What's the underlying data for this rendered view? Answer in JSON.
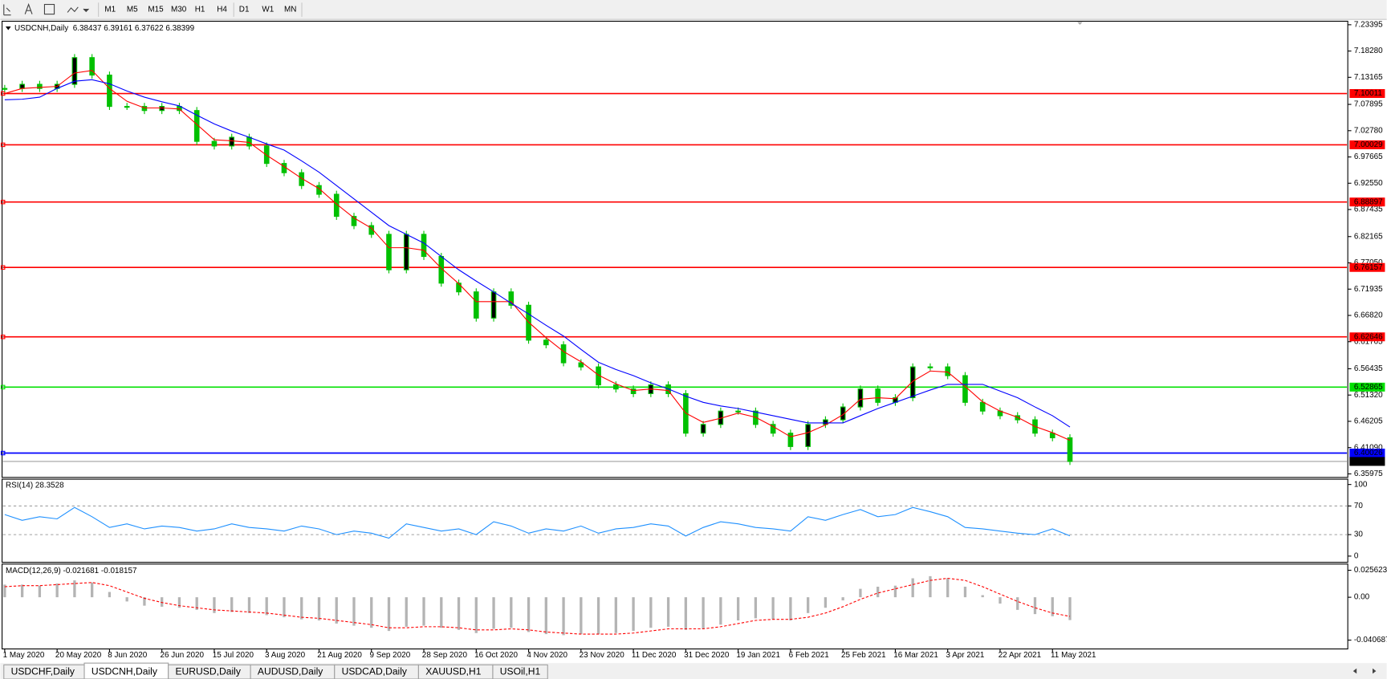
{
  "toolbar": {
    "buttons": [
      "M1",
      "M5",
      "M15",
      "M30",
      "H1",
      "H4",
      "D1",
      "W1",
      "MN"
    ]
  },
  "tabs": [
    "USDCHF,Daily",
    "USDCNH,Daily",
    "EURUSD,Daily",
    "AUDUSD,Daily",
    "USDCAD,Daily",
    "XAUUSD,H1",
    "USOil,H1"
  ],
  "active_tab": 1,
  "chart_data": [
    {
      "type": "candlestick",
      "title": "USDCNH,Daily",
      "subtitle": "6.38437 6.39161 6.37622 6.38399",
      "categories": [
        "1 May 2020",
        null,
        null,
        "20 May 2020",
        null,
        null,
        "8 Jun 2020",
        null,
        null,
        "26 Jun 2020",
        null,
        null,
        "15 Jul 2020",
        null,
        null,
        "3 Aug 2020",
        null,
        null,
        "21 Aug 2020",
        null,
        null,
        "9 Sep 2020",
        null,
        null,
        "28 Sep 2020",
        null,
        null,
        "16 Oct 2020",
        null,
        null,
        "4 Nov 2020",
        null,
        null,
        "23 Nov 2020",
        null,
        null,
        "11 Dec 2020",
        null,
        null,
        "31 Dec 2020",
        null,
        null,
        "19 Jan 2021",
        null,
        null,
        "6 Feb 2021",
        null,
        null,
        "25 Feb 2021",
        null,
        null,
        "16 Mar 2021",
        null,
        null,
        "3 Apr 2021",
        null,
        null,
        "22 Apr 2021",
        null,
        null,
        "11 May 2021",
        null
      ],
      "close": [
        7.11,
        7.118,
        7.11,
        7.118,
        7.17,
        7.136,
        7.075,
        7.075,
        7.067,
        7.075,
        7.067,
        7.007,
        6.998,
        7.015,
        6.998,
        6.964,
        6.946,
        6.921,
        6.904,
        6.861,
        6.843,
        6.826,
        6.757,
        6.826,
        6.783,
        6.731,
        6.714,
        6.663,
        6.714,
        6.688,
        6.62,
        6.611,
        6.576,
        6.568,
        6.533,
        6.525,
        6.516,
        6.533,
        6.516,
        6.439,
        6.456,
        6.482,
        6.482,
        6.456,
        6.439,
        6.413,
        6.456,
        6.465,
        6.49,
        6.525,
        6.499,
        6.508,
        6.568,
        6.568,
        6.551,
        6.499,
        6.482,
        6.473,
        6.465,
        6.439,
        6.43,
        6.38399
      ],
      "candle_color": "#00c000",
      "ma_lines": [
        {
          "color": "#ff0000",
          "values": [
            7.1,
            7.11,
            7.112,
            7.114,
            7.14,
            7.145,
            7.11,
            7.085,
            7.072,
            7.072,
            7.07,
            7.04,
            7.01,
            7.008,
            7.005,
            6.98,
            6.958,
            6.935,
            6.915,
            6.885,
            6.858,
            6.838,
            6.8,
            6.8,
            6.795,
            6.76,
            6.73,
            6.695,
            6.695,
            6.695,
            6.655,
            6.625,
            6.598,
            6.578,
            6.552,
            6.535,
            6.522,
            6.525,
            6.522,
            6.478,
            6.46,
            6.468,
            6.478,
            6.47,
            6.452,
            6.432,
            6.44,
            6.455,
            6.475,
            6.505,
            6.508,
            6.506,
            6.54,
            6.56,
            6.558,
            6.53,
            6.5,
            6.482,
            6.47,
            6.452,
            6.44,
            6.425
          ]
        },
        {
          "color": "#0000ff",
          "values": [
            7.088,
            7.089,
            7.093,
            7.11,
            7.124,
            7.127,
            7.119,
            7.105,
            7.093,
            7.084,
            7.076,
            7.058,
            7.041,
            7.027,
            7.015,
            7.002,
            6.99,
            6.969,
            6.947,
            6.921,
            6.895,
            6.869,
            6.843,
            6.826,
            6.809,
            6.783,
            6.757,
            6.735,
            6.714,
            6.692,
            6.671,
            6.649,
            6.628,
            6.602,
            6.577,
            6.563,
            6.551,
            6.537,
            6.525,
            6.511,
            6.499,
            6.492,
            6.487,
            6.48,
            6.473,
            6.466,
            6.459,
            6.459,
            6.459,
            6.473,
            6.487,
            6.499,
            6.511,
            6.523,
            6.534,
            6.534,
            6.534,
            6.521,
            6.508,
            6.49,
            6.473,
            6.451
          ]
        }
      ],
      "levels": [
        {
          "value": 7.10011,
          "color": "#ff0000"
        },
        {
          "value": 7.00029,
          "color": "#ff0000"
        },
        {
          "value": 6.88897,
          "color": "#ff0000"
        },
        {
          "value": 6.76157,
          "color": "#ff0000"
        },
        {
          "value": 6.62646,
          "color": "#ff0000"
        },
        {
          "value": 6.52865,
          "color": "#00e000"
        },
        {
          "value": 6.40026,
          "color": "#0000ff"
        }
      ],
      "ylim": [
        6.35975,
        7.23395
      ],
      "yticks": [
        7.23395,
        {
          "value": 7.1828,
          "label": "7.18280"
        },
        7.13165,
        7.07895,
        {
          "value": 7.0278,
          "label": "7.02780"
        },
        6.97665,
        {
          "value": 6.9255,
          "label": "6.92550"
        },
        6.87435,
        6.82165,
        {
          "value": 6.7705,
          "label": "6.77050"
        },
        6.71935,
        {
          "value": 6.6682,
          "label": "6.66820"
        },
        6.61705,
        6.56435,
        {
          "value": 6.5132,
          "label": "6.51320"
        },
        6.46205,
        {
          "value": 6.4109,
          "label": "6.41090"
        },
        6.35975
      ]
    },
    {
      "type": "line",
      "title": "RSI(14) 28.3528",
      "color": "#1e90ff",
      "values": [
        58,
        50,
        55,
        52,
        68,
        55,
        40,
        45,
        38,
        42,
        40,
        35,
        38,
        45,
        40,
        38,
        35,
        42,
        38,
        30,
        35,
        32,
        25,
        45,
        40,
        35,
        38,
        30,
        48,
        42,
        32,
        38,
        35,
        42,
        32,
        38,
        40,
        45,
        42,
        28,
        40,
        48,
        45,
        40,
        38,
        35,
        55,
        50,
        58,
        65,
        55,
        58,
        68,
        62,
        55,
        40,
        38,
        35,
        32,
        30,
        38,
        28.35
      ],
      "ylim": [
        0,
        100
      ],
      "yticks": [
        100,
        70,
        30,
        0
      ]
    },
    {
      "type": "macd",
      "title": "MACD(12,26,9) -0.021681 -0.018157",
      "color": "#b4b4b4",
      "signal_color": "#ff0000",
      "values": [
        0.012,
        0.012,
        0.011,
        0.013,
        0.016,
        0.014,
        0.005,
        -0.004,
        -0.008,
        -0.009,
        -0.01,
        -0.012,
        -0.015,
        -0.014,
        -0.015,
        -0.017,
        -0.019,
        -0.021,
        -0.022,
        -0.025,
        -0.027,
        -0.029,
        -0.032,
        -0.028,
        -0.027,
        -0.029,
        -0.031,
        -0.034,
        -0.03,
        -0.029,
        -0.033,
        -0.035,
        -0.036,
        -0.035,
        -0.035,
        -0.034,
        -0.032,
        -0.029,
        -0.028,
        -0.031,
        -0.03,
        -0.026,
        -0.022,
        -0.02,
        -0.021,
        -0.022,
        -0.015,
        -0.01,
        -0.003,
        0.008,
        0.01,
        0.011,
        0.018,
        0.02,
        0.018,
        0.01,
        0.002,
        -0.006,
        -0.012,
        -0.016,
        -0.018,
        -0.021681
      ],
      "signal": [
        0.01,
        0.011,
        0.011,
        0.012,
        0.013,
        0.014,
        0.011,
        0.005,
        -0.001,
        -0.005,
        -0.008,
        -0.01,
        -0.012,
        -0.013,
        -0.014,
        -0.015,
        -0.017,
        -0.019,
        -0.02,
        -0.022,
        -0.024,
        -0.026,
        -0.029,
        -0.029,
        -0.028,
        -0.028,
        -0.029,
        -0.031,
        -0.031,
        -0.03,
        -0.031,
        -0.033,
        -0.034,
        -0.035,
        -0.035,
        -0.035,
        -0.034,
        -0.032,
        -0.03,
        -0.03,
        -0.03,
        -0.028,
        -0.025,
        -0.022,
        -0.021,
        -0.021,
        -0.019,
        -0.015,
        -0.009,
        -0.002,
        0.004,
        0.008,
        0.012,
        0.016,
        0.018,
        0.016,
        0.01,
        0.003,
        -0.004,
        -0.01,
        -0.015,
        -0.018157
      ],
      "ylim": [
        -0.040687,
        0.025623
      ],
      "yticks": [
        0.025623,
        {
          "value": 0,
          "label": "0.00"
        },
        -0.040687
      ]
    }
  ]
}
